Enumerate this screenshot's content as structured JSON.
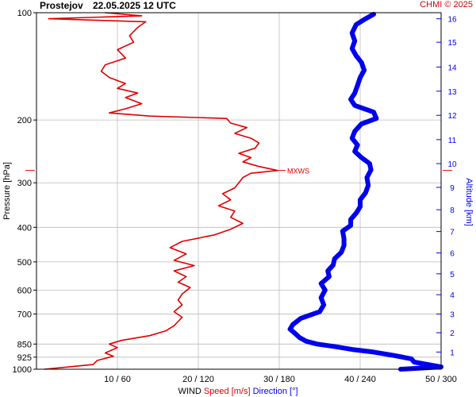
{
  "header": {
    "site": "Prostejov",
    "datetime": "22.05.2025 12 UTC",
    "credit": "CHMI © 2025"
  },
  "colors": {
    "speed": "#e00000",
    "direction": "#0000ee",
    "grid": "#bbbbbb",
    "axis": "#000000",
    "marker": "#e00000"
  },
  "chart_data": {
    "type": "line",
    "title": "",
    "ylabel": "Pressure [hPa]",
    "y2label": "Altitude [km]",
    "xlabel_parts": [
      {
        "text": "WIND",
        "color": "#000000"
      },
      {
        "text": "Speed [m/s]",
        "color": "#e00000"
      },
      {
        "text": "Direction [°]",
        "color": "#0000ee"
      }
    ],
    "y_scale": "log",
    "ylim": [
      1000,
      100
    ],
    "xlim_speed": [
      0,
      50
    ],
    "xlim_direction": [
      0,
      300
    ],
    "pressure_ticks": [
      100,
      200,
      300,
      400,
      500,
      600,
      700,
      850,
      925,
      1000
    ],
    "pressure_gridlines": [
      200,
      300,
      400,
      500,
      600,
      700,
      850,
      925
    ],
    "altitude_ticks": [
      {
        "km": 1,
        "p": 895
      },
      {
        "km": 2,
        "p": 790
      },
      {
        "km": 3,
        "p": 700
      },
      {
        "km": 4,
        "p": 618
      },
      {
        "km": 5,
        "p": 540
      },
      {
        "km": 6,
        "p": 472
      },
      {
        "km": 7,
        "p": 411
      },
      {
        "km": 8,
        "p": 357
      },
      {
        "km": 9,
        "p": 309
      },
      {
        "km": 10,
        "p": 265
      },
      {
        "km": 11,
        "p": 227
      },
      {
        "km": 12,
        "p": 194
      },
      {
        "km": 13,
        "p": 166
      },
      {
        "km": 14,
        "p": 142
      },
      {
        "km": 15,
        "p": 121
      },
      {
        "km": 16,
        "p": 104
      }
    ],
    "x_ticks": [
      {
        "label": "10 / 60",
        "speed": 10,
        "dir": 60
      },
      {
        "label": "20 / 120",
        "speed": 20,
        "dir": 120
      },
      {
        "label": "30 / 180",
        "speed": 30,
        "dir": 180
      },
      {
        "label": "40 / 240",
        "speed": 40,
        "dir": 240
      },
      {
        "label": "50 / 300",
        "speed": 50,
        "dir": 300
      }
    ],
    "annotation": {
      "text": "MXWS",
      "p": 277,
      "speed": 29.8
    },
    "series": [
      {
        "name": "Speed [m/s]",
        "unit": "m/s",
        "color": "#e00000",
        "points": [
          [
            1000,
            1
          ],
          [
            985,
            4
          ],
          [
            970,
            7
          ],
          [
            945,
            7.5
          ],
          [
            920,
            9.5
          ],
          [
            900,
            8.5
          ],
          [
            870,
            10
          ],
          [
            850,
            9
          ],
          [
            830,
            10.5
          ],
          [
            805,
            14
          ],
          [
            780,
            16
          ],
          [
            755,
            17
          ],
          [
            735,
            17.5
          ],
          [
            715,
            18
          ],
          [
            690,
            17
          ],
          [
            660,
            18
          ],
          [
            640,
            17.5
          ],
          [
            615,
            18
          ],
          [
            590,
            19
          ],
          [
            570,
            17.5
          ],
          [
            550,
            18.5
          ],
          [
            530,
            17
          ],
          [
            512,
            19.5
          ],
          [
            495,
            17
          ],
          [
            475,
            18.5
          ],
          [
            456,
            16.5
          ],
          [
            438,
            18
          ],
          [
            420,
            22
          ],
          [
            405,
            24
          ],
          [
            390,
            25.5
          ],
          [
            375,
            24
          ],
          [
            360,
            24.5
          ],
          [
            348,
            22.5
          ],
          [
            335,
            24
          ],
          [
            322,
            23
          ],
          [
            310,
            24.5
          ],
          [
            300,
            25
          ],
          [
            290,
            25.5
          ],
          [
            282,
            26.5
          ],
          [
            277,
            29.8
          ],
          [
            270,
            27.5
          ],
          [
            262,
            25.5
          ],
          [
            255,
            26.5
          ],
          [
            248,
            25
          ],
          [
            240,
            27
          ],
          [
            232,
            27.5
          ],
          [
            225,
            26.5
          ],
          [
            218,
            24.5
          ],
          [
            210,
            26
          ],
          [
            204,
            24
          ],
          [
            198,
            23.5
          ],
          [
            195,
            14
          ],
          [
            191,
            9
          ],
          [
            186,
            11
          ],
          [
            180,
            13
          ],
          [
            173,
            11
          ],
          [
            168,
            12.5
          ],
          [
            163,
            10
          ],
          [
            158,
            11
          ],
          [
            152,
            9
          ],
          [
            146,
            8
          ],
          [
            140,
            8.5
          ],
          [
            134,
            11
          ],
          [
            127,
            10
          ],
          [
            121,
            12
          ],
          [
            116,
            11.5
          ],
          [
            110,
            12.5
          ],
          [
            106,
            13.5
          ],
          [
            104,
            1.5
          ],
          [
            102,
            13
          ],
          [
            100,
            8.5
          ]
        ]
      },
      {
        "name": "Direction [°]",
        "unit": "°",
        "color": "#0000ee",
        "points": [
          [
            1000,
            270
          ],
          [
            985,
            300
          ],
          [
            970,
            290
          ],
          [
            955,
            280
          ],
          [
            935,
            278
          ],
          [
            915,
            265
          ],
          [
            895,
            250
          ],
          [
            880,
            234
          ],
          [
            865,
            222
          ],
          [
            850,
            208
          ],
          [
            835,
            200
          ],
          [
            815,
            195
          ],
          [
            795,
            192
          ],
          [
            772,
            188
          ],
          [
            750,
            190
          ],
          [
            720,
            196
          ],
          [
            690,
            210
          ],
          [
            660,
            213
          ],
          [
            630,
            211
          ],
          [
            600,
            214
          ],
          [
            575,
            211
          ],
          [
            550,
            217
          ],
          [
            530,
            216
          ],
          [
            510,
            220
          ],
          [
            490,
            221
          ],
          [
            470,
            226
          ],
          [
            450,
            228
          ],
          [
            430,
            228
          ],
          [
            410,
            227
          ],
          [
            395,
            233
          ],
          [
            380,
            233
          ],
          [
            365,
            237
          ],
          [
            350,
            240
          ],
          [
            335,
            240
          ],
          [
            320,
            244
          ],
          [
            305,
            246
          ],
          [
            290,
            245
          ],
          [
            276,
            248
          ],
          [
            265,
            247
          ],
          [
            255,
            241
          ],
          [
            245,
            236
          ],
          [
            235,
            238
          ],
          [
            225,
            234
          ],
          [
            215,
            236
          ],
          [
            205,
            241
          ],
          [
            198,
            252
          ],
          [
            190,
            250
          ],
          [
            182,
            236
          ],
          [
            175,
            233
          ],
          [
            168,
            236
          ],
          [
            160,
            238
          ],
          [
            152,
            240
          ],
          [
            145,
            243
          ],
          [
            138,
            241
          ],
          [
            132,
            237
          ],
          [
            126,
            234
          ],
          [
            120,
            236
          ],
          [
            114,
            234
          ],
          [
            108,
            237
          ],
          [
            104,
            244
          ],
          [
            101,
            250
          ]
        ]
      }
    ]
  }
}
